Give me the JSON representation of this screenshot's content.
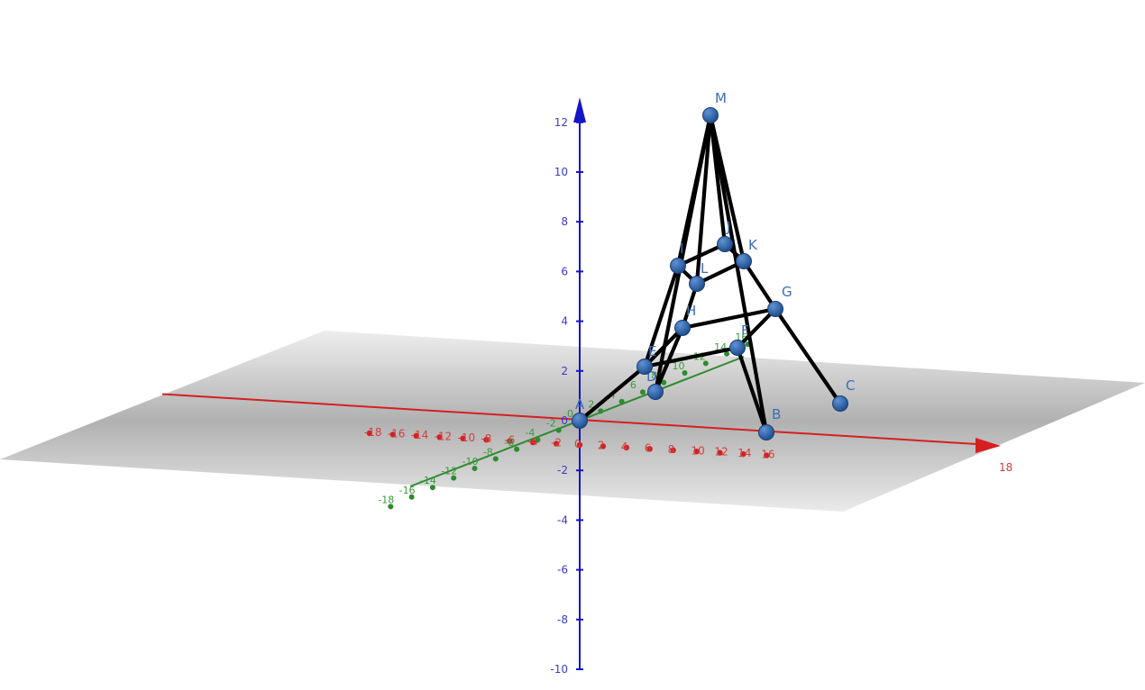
{
  "axes": {
    "x": {
      "color": "#d42020",
      "ticks": [
        "-18",
        "-16",
        "-14",
        "-12",
        "-10",
        "-8",
        "-6",
        "-4",
        "-2",
        "0",
        "2",
        "4",
        "6",
        "8",
        "10",
        "12",
        "14",
        "16",
        "18"
      ]
    },
    "y": {
      "color": "#2e8b2e",
      "ticks": [
        "-18",
        "-16",
        "-14",
        "-12",
        "-10",
        "-8",
        "-6",
        "-4",
        "-2",
        "0",
        "2",
        "4",
        "6",
        "8",
        "10",
        "12",
        "14",
        "16"
      ]
    },
    "z": {
      "color": "#1515c8",
      "ticks": [
        "-10",
        "-8",
        "-6",
        "-4",
        "-2",
        "0",
        "2",
        "4",
        "6",
        "8",
        "10",
        "12"
      ]
    }
  },
  "plane": {
    "color": "#9a9a9a"
  },
  "points": [
    {
      "id": "A",
      "label": "A"
    },
    {
      "id": "B",
      "label": "B"
    },
    {
      "id": "C",
      "label": "C"
    },
    {
      "id": "D",
      "label": "D"
    },
    {
      "id": "E",
      "label": "E"
    },
    {
      "id": "F",
      "label": "F"
    },
    {
      "id": "G",
      "label": "G"
    },
    {
      "id": "H",
      "label": "H"
    },
    {
      "id": "I",
      "label": "I"
    },
    {
      "id": "J",
      "label": "J"
    },
    {
      "id": "K",
      "label": "K"
    },
    {
      "id": "L",
      "label": "L"
    },
    {
      "id": "M",
      "label": "M"
    }
  ],
  "segments": [
    [
      "A",
      "E"
    ],
    [
      "E",
      "F"
    ],
    [
      "F",
      "G"
    ],
    [
      "G",
      "H"
    ],
    [
      "H",
      "E"
    ],
    [
      "D",
      "H"
    ],
    [
      "B",
      "F"
    ],
    [
      "C",
      "G"
    ],
    [
      "H",
      "L"
    ],
    [
      "G",
      "K"
    ],
    [
      "I",
      "J"
    ],
    [
      "J",
      "K"
    ],
    [
      "K",
      "L"
    ],
    [
      "L",
      "I"
    ],
    [
      "M",
      "I"
    ],
    [
      "M",
      "J"
    ],
    [
      "M",
      "K"
    ],
    [
      "M",
      "L"
    ],
    [
      "I",
      "E"
    ],
    [
      "M",
      "B"
    ],
    [
      "M",
      "D"
    ]
  ],
  "colors": {
    "point": "#2f64a8",
    "label": "#3b6fb5",
    "segment": "#000000"
  }
}
